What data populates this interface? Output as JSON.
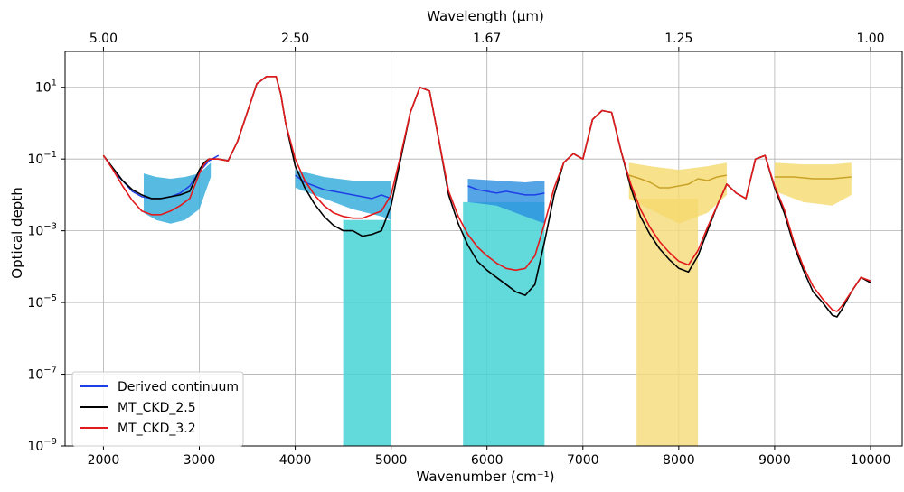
{
  "chart_data": {
    "type": "line",
    "xlabel": "Wavenumber (cm⁻¹)",
    "ylabel": "Optical depth",
    "top_xlabel": "Wavelength (μm)",
    "xlim": [
      1600,
      10330
    ],
    "ylim_log10": [
      -9,
      2
    ],
    "y_scale": "log",
    "grid": true,
    "legend_position": "lower-left",
    "x_ticks": [
      2000,
      3000,
      4000,
      5000,
      6000,
      7000,
      8000,
      9000,
      10000
    ],
    "x_tick_labels": [
      "2000",
      "3000",
      "4000",
      "5000",
      "6000",
      "7000",
      "8000",
      "9000",
      "10000"
    ],
    "y_ticks_log10": [
      -9,
      -7,
      -5,
      -3,
      -1,
      1
    ],
    "y_tick_labels": [
      {
        "base": "10",
        "exp": "−9"
      },
      {
        "base": "10",
        "exp": "−7"
      },
      {
        "base": "10",
        "exp": "−5"
      },
      {
        "base": "10",
        "exp": "−3"
      },
      {
        "base": "10",
        "exp": "−1"
      },
      {
        "base": "10",
        "exp": "1"
      }
    ],
    "top_ticks": [
      {
        "wavenumber": 2000,
        "label": "5.00"
      },
      {
        "wavenumber": 4000,
        "label": "2.50"
      },
      {
        "wavenumber": 6000,
        "label": "1.67"
      },
      {
        "wavenumber": 8000,
        "label": "1.25"
      },
      {
        "wavenumber": 10000,
        "label": "1.00"
      }
    ],
    "series": [
      {
        "name": "MT_CKD_2.5",
        "color": "#000000",
        "x": [
          2000,
          2100,
          2200,
          2300,
          2400,
          2500,
          2600,
          2700,
          2800,
          2900,
          3000,
          3050,
          3100,
          3200,
          3300,
          3400,
          3500,
          3600,
          3700,
          3800,
          3850,
          3900,
          4000,
          4100,
          4200,
          4300,
          4400,
          4500,
          4600,
          4700,
          4800,
          4900,
          5000,
          5100,
          5200,
          5300,
          5400,
          5500,
          5600,
          5700,
          5800,
          5900,
          6000,
          6100,
          6200,
          6300,
          6400,
          6500,
          6600,
          6700,
          6800,
          6900,
          7000,
          7100,
          7200,
          7300,
          7400,
          7500,
          7600,
          7700,
          7800,
          7900,
          8000,
          8100,
          8200,
          8300,
          8400,
          8500,
          8600,
          8700,
          8800,
          8900,
          9000,
          9100,
          9200,
          9300,
          9400,
          9500,
          9600,
          9650,
          9700,
          9800,
          9900,
          10000
        ],
        "log10_y": [
          -0.9,
          -1.25,
          -1.6,
          -1.85,
          -2.0,
          -2.1,
          -2.1,
          -2.05,
          -2.0,
          -1.9,
          -1.3,
          -1.1,
          -1.0,
          -1.0,
          -1.05,
          -0.5,
          0.3,
          1.1,
          1.3,
          1.3,
          0.8,
          0.0,
          -1.2,
          -1.8,
          -2.25,
          -2.6,
          -2.85,
          -3.0,
          -3.0,
          -3.15,
          -3.1,
          -3.0,
          -2.3,
          -1.0,
          0.3,
          1.0,
          0.9,
          -0.5,
          -2.0,
          -2.8,
          -3.4,
          -3.85,
          -4.1,
          -4.3,
          -4.5,
          -4.7,
          -4.8,
          -4.5,
          -3.3,
          -2.0,
          -1.1,
          -0.85,
          -1.0,
          0.1,
          0.35,
          0.3,
          -0.8,
          -1.8,
          -2.6,
          -3.1,
          -3.5,
          -3.8,
          -4.05,
          -4.15,
          -3.7,
          -3.0,
          -2.3,
          -1.7,
          -1.95,
          -2.1,
          -1.0,
          -0.9,
          -1.8,
          -2.5,
          -3.4,
          -4.1,
          -4.7,
          -5.0,
          -5.35,
          -5.4,
          -5.2,
          -4.7,
          -4.3,
          -4.45
        ]
      },
      {
        "name": "MT_CKD_3.2",
        "color": "#e31a1c",
        "x": [
          2000,
          2100,
          2200,
          2300,
          2400,
          2500,
          2600,
          2700,
          2800,
          2900,
          3000,
          3050,
          3100,
          3200,
          3300,
          3400,
          3500,
          3600,
          3700,
          3800,
          3850,
          3900,
          4000,
          4100,
          4200,
          4300,
          4400,
          4500,
          4600,
          4700,
          4800,
          4900,
          5000,
          5100,
          5200,
          5300,
          5400,
          5500,
          5600,
          5700,
          5800,
          5900,
          6000,
          6100,
          6200,
          6300,
          6400,
          6500,
          6600,
          6700,
          6800,
          6900,
          7000,
          7100,
          7200,
          7300,
          7400,
          7500,
          7600,
          7700,
          7800,
          7900,
          8000,
          8100,
          8200,
          8300,
          8400,
          8500,
          8600,
          8700,
          8800,
          8900,
          9000,
          9100,
          9200,
          9300,
          9400,
          9500,
          9600,
          9650,
          9700,
          9800,
          9900,
          10000
        ],
        "log10_y": [
          -0.9,
          -1.3,
          -1.75,
          -2.15,
          -2.45,
          -2.55,
          -2.55,
          -2.45,
          -2.3,
          -2.1,
          -1.4,
          -1.15,
          -1.0,
          -1.0,
          -1.05,
          -0.5,
          0.3,
          1.1,
          1.3,
          1.3,
          0.8,
          0.0,
          -1.0,
          -1.6,
          -2.0,
          -2.3,
          -2.5,
          -2.6,
          -2.65,
          -2.65,
          -2.55,
          -2.45,
          -2.0,
          -0.9,
          0.3,
          1.0,
          0.9,
          -0.5,
          -1.9,
          -2.6,
          -3.1,
          -3.45,
          -3.7,
          -3.9,
          -4.05,
          -4.1,
          -4.05,
          -3.7,
          -2.8,
          -1.8,
          -1.1,
          -0.85,
          -1.0,
          0.1,
          0.35,
          0.3,
          -0.8,
          -1.7,
          -2.4,
          -2.9,
          -3.3,
          -3.6,
          -3.85,
          -3.95,
          -3.55,
          -2.9,
          -2.3,
          -1.7,
          -1.95,
          -2.1,
          -1.0,
          -0.9,
          -1.75,
          -2.4,
          -3.3,
          -4.0,
          -4.55,
          -4.9,
          -5.2,
          -5.25,
          -5.1,
          -4.7,
          -4.3,
          -4.4
        ]
      },
      {
        "name": "Derived continuum",
        "color": "#1f3fe6",
        "segments": [
          {
            "x": [
              2120,
              2200,
              2300,
              2400,
              2500,
              2600,
              2700,
              2800,
              2900,
              3000,
              3100,
              3200
            ],
            "log10_y": [
              -1.4,
              -1.6,
              -1.9,
              -2.05,
              -2.1,
              -2.1,
              -2.05,
              -1.95,
              -1.75,
              -1.35,
              -1.05,
              -0.9
            ]
          },
          {
            "x": [
              4000,
              4100,
              4200,
              4300,
              4400,
              4500,
              4600,
              4700,
              4800,
              4900,
              5000
            ],
            "log10_y": [
              -1.45,
              -1.65,
              -1.75,
              -1.85,
              -1.9,
              -1.95,
              -2.0,
              -2.05,
              -2.1,
              -2.0,
              -2.1
            ]
          },
          {
            "x": [
              5800,
              5900,
              6000,
              6100,
              6200,
              6300,
              6400,
              6500,
              6600
            ],
            "log10_y": [
              -1.75,
              -1.85,
              -1.9,
              -1.95,
              -1.9,
              -1.95,
              -2.0,
              -2.0,
              -1.95
            ]
          }
        ]
      }
    ],
    "uncertainty_bands": [
      {
        "color": "#2ca9d9",
        "x": [
          2420,
          2550,
          2700,
          2850,
          3000,
          3120
        ],
        "upper_log10": [
          -1.4,
          -1.5,
          -1.55,
          -1.5,
          -1.4,
          -1.1
        ],
        "lower_log10": [
          -2.5,
          -2.7,
          -2.8,
          -2.7,
          -2.4,
          -1.5
        ]
      },
      {
        "color": "#2ca9d9",
        "x": [
          4000,
          4300,
          4600,
          4900,
          5000
        ],
        "upper_log10": [
          -1.3,
          -1.5,
          -1.6,
          -1.6,
          -1.6
        ],
        "lower_log10": [
          -1.8,
          -2.1,
          -2.4,
          -2.6,
          -2.7
        ]
      },
      {
        "color": "#2b8fe0",
        "x": [
          5800,
          6100,
          6400,
          6600
        ],
        "upper_log10": [
          -1.55,
          -1.6,
          -1.65,
          -1.6
        ],
        "lower_log10": [
          -2.2,
          -2.3,
          -2.6,
          -2.8
        ]
      },
      {
        "color": "#f5d96e",
        "x": [
          7480,
          7700,
          8000,
          8300,
          8500
        ],
        "upper_log10": [
          -1.1,
          -1.2,
          -1.3,
          -1.2,
          -1.1
        ],
        "lower_log10": [
          -2.1,
          -2.4,
          -2.8,
          -2.5,
          -2.0
        ]
      },
      {
        "color": "#f5d96e",
        "x": [
          9000,
          9300,
          9600,
          9800
        ],
        "upper_log10": [
          -1.1,
          -1.15,
          -1.15,
          -1.1
        ],
        "lower_log10": [
          -1.9,
          -2.2,
          -2.3,
          -2.0
        ]
      }
    ],
    "deep_bands": [
      {
        "color": "#46d3d6",
        "x_from": 4500,
        "x_to": 5000,
        "log10_top": -2.7
      },
      {
        "color": "#46d3d6",
        "x_from": 5750,
        "x_to": 6600,
        "log10_top": -2.2
      },
      {
        "color": "#f6dc80",
        "x_from": 7560,
        "x_to": 8200,
        "log10_top": -2.1
      }
    ],
    "derived_gold": [
      {
        "x": [
          7480,
          7600,
          7700,
          7800,
          7900,
          8000,
          8100,
          8200,
          8300,
          8400,
          8500
        ],
        "log10_y": [
          -1.45,
          -1.55,
          -1.65,
          -1.8,
          -1.8,
          -1.75,
          -1.7,
          -1.55,
          -1.6,
          -1.5,
          -1.45
        ]
      },
      {
        "x": [
          9000,
          9200,
          9400,
          9600,
          9800
        ],
        "log10_y": [
          -1.5,
          -1.5,
          -1.55,
          -1.55,
          -1.5
        ]
      }
    ]
  }
}
